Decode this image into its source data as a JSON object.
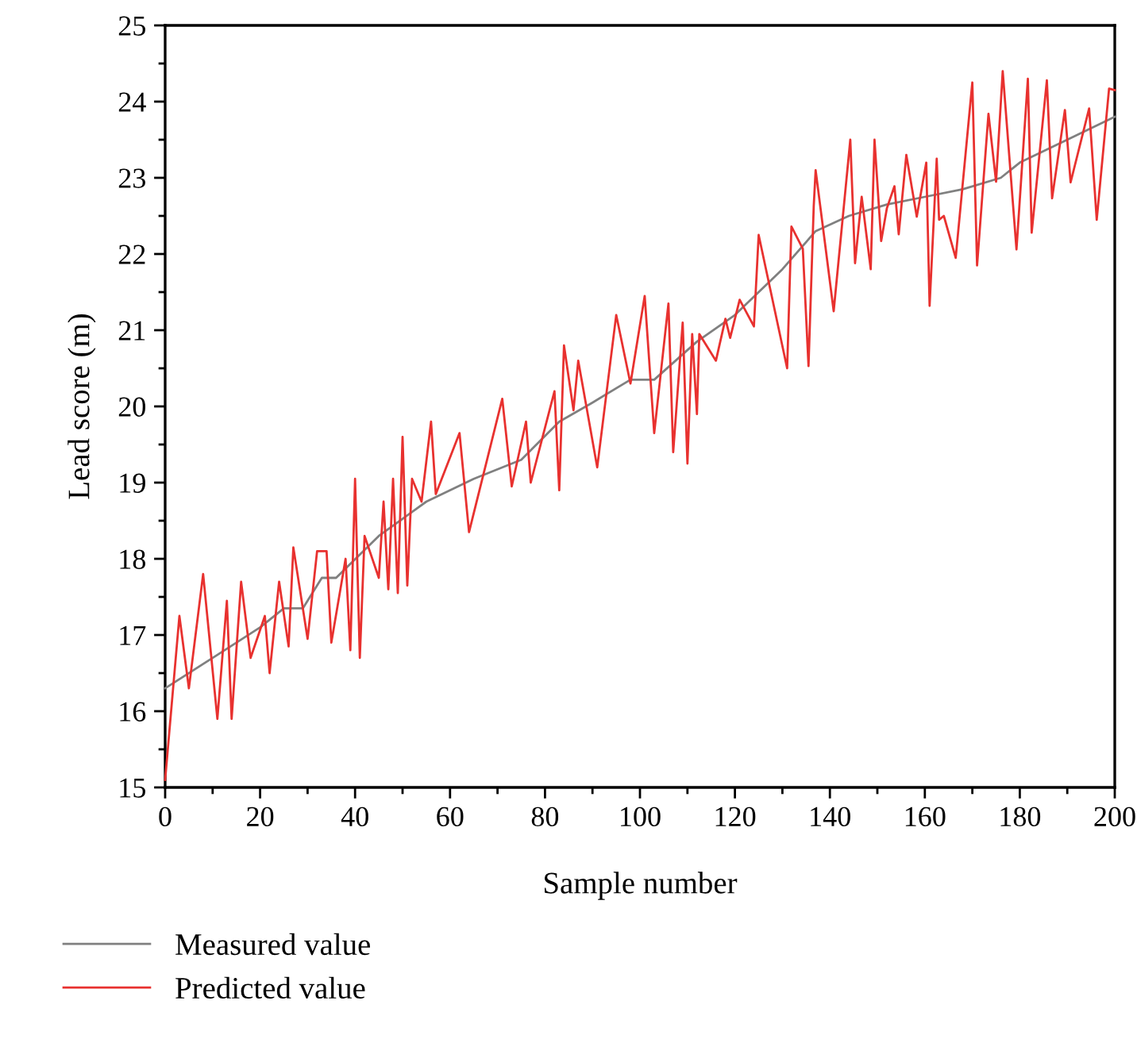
{
  "chart_data": {
    "type": "line",
    "xlabel": "Sample number",
    "ylabel": "Lead score (m)",
    "xlim": [
      0,
      200
    ],
    "ylim": [
      15,
      25
    ],
    "xticks": [
      0,
      {
        "value": 10,
        "label": null
      },
      20,
      {
        "value": 30,
        "label": null
      },
      40,
      {
        "value": 50,
        "label": null
      },
      60,
      {
        "value": 70,
        "label": null
      },
      80,
      {
        "value": 90,
        "label": null
      },
      100,
      {
        "value": 110,
        "label": null
      },
      120,
      {
        "value": 130,
        "label": null
      },
      140,
      {
        "value": 150,
        "label": null
      },
      160,
      {
        "value": 170,
        "label": null
      },
      180,
      {
        "value": 190,
        "label": null
      },
      200
    ],
    "yticks": [
      15,
      {
        "value": 15.5,
        "label": null
      },
      16,
      {
        "value": 16.5,
        "label": null
      },
      17,
      {
        "value": 17.5,
        "label": null
      },
      18,
      {
        "value": 18.5,
        "label": null
      },
      19,
      {
        "value": 19.5,
        "label": null
      },
      20,
      {
        "value": 20.5,
        "label": null
      },
      21,
      {
        "value": 21.5,
        "label": null
      },
      22,
      {
        "value": 22.5,
        "label": null
      },
      23,
      {
        "value": 23.5,
        "label": null
      },
      24,
      {
        "value": 24.5,
        "label": null
      },
      25
    ],
    "grid": false,
    "legend": "bottom left",
    "marker": "none",
    "line_style": "solid",
    "series": [
      {
        "name": "Measured value",
        "color": "#808080",
        "x": [
          0,
          10,
          20,
          25,
          29,
          33,
          36,
          45,
          55,
          65,
          75,
          83,
          90,
          98,
          103,
          112,
          120,
          130,
          137,
          144,
          152,
          160,
          168,
          176,
          180,
          190,
          200
        ],
        "values": [
          16.3,
          16.7,
          17.1,
          17.35,
          17.35,
          17.75,
          17.75,
          18.3,
          18.75,
          19.05,
          19.3,
          19.8,
          20.05,
          20.35,
          20.35,
          20.85,
          21.2,
          21.8,
          22.3,
          22.5,
          22.65,
          22.75,
          22.85,
          23.0,
          23.2,
          23.5,
          23.8
        ]
      },
      {
        "name": "Predicted value",
        "color": "#e8312f",
        "x": [
          0,
          3,
          5,
          8,
          11,
          13,
          14,
          16,
          18,
          21,
          22,
          24,
          26,
          27,
          30,
          32,
          34,
          35,
          38,
          39,
          40,
          41,
          42,
          45,
          46,
          47,
          48,
          49,
          50,
          51,
          52,
          54,
          56,
          57,
          62,
          64,
          71,
          73,
          76,
          77,
          82,
          83,
          84,
          86,
          87,
          91,
          95,
          98,
          101,
          103,
          106,
          107,
          109,
          110,
          111,
          112,
          112.5,
          116,
          118,
          119,
          121,
          124,
          125,
          131,
          131.9,
          134.3,
          135.5,
          136.6,
          137,
          140.8,
          144.3,
          145.3,
          146.7,
          148.6,
          149.4,
          150.8,
          152,
          153.6,
          154.5,
          156.1,
          158.3,
          160.3,
          161,
          162.5,
          163,
          164,
          166.5,
          170,
          171,
          173.4,
          175,
          176.4,
          179.3,
          181.7,
          182.5,
          185.7,
          186.8,
          189.5,
          190.7,
          194.6,
          196.2,
          198.8,
          200
        ],
        "values": [
          15.1,
          17.25,
          16.3,
          17.8,
          15.9,
          17.45,
          15.9,
          17.7,
          16.7,
          17.25,
          16.5,
          17.7,
          16.85,
          18.15,
          16.95,
          18.1,
          18.1,
          16.9,
          18.0,
          16.8,
          19.05,
          16.7,
          18.3,
          17.75,
          18.75,
          17.6,
          19.05,
          17.55,
          19.6,
          17.65,
          19.05,
          18.75,
          19.8,
          18.85,
          19.65,
          18.35,
          20.1,
          18.95,
          19.8,
          19.0,
          20.2,
          18.9,
          20.8,
          19.95,
          20.6,
          19.2,
          21.2,
          20.3,
          21.45,
          19.65,
          21.35,
          19.4,
          21.1,
          19.25,
          20.95,
          19.9,
          20.95,
          20.6,
          21.15,
          20.9,
          21.4,
          21.05,
          22.25,
          20.5,
          22.36,
          22.07,
          20.53,
          22.63,
          23.1,
          21.25,
          23.5,
          21.88,
          22.75,
          21.8,
          23.5,
          22.17,
          22.6,
          22.89,
          22.26,
          23.3,
          22.49,
          23.2,
          21.32,
          23.25,
          22.45,
          22.5,
          21.95,
          24.25,
          21.85,
          23.84,
          22.95,
          24.4,
          22.06,
          24.3,
          22.28,
          24.28,
          22.73,
          23.89,
          22.94,
          23.91,
          22.45,
          24.17,
          24.15
        ]
      }
    ]
  }
}
